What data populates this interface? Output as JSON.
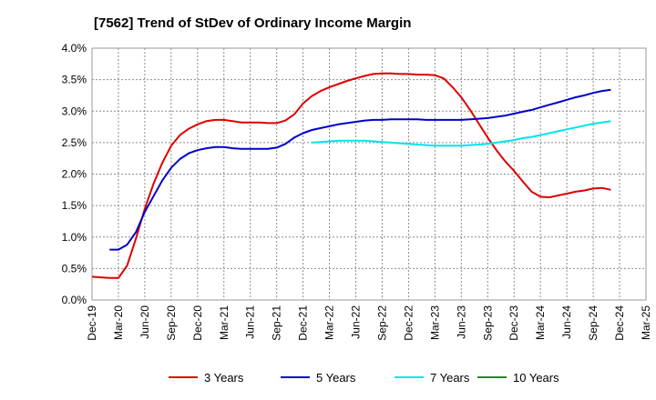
{
  "chart_data": {
    "type": "line",
    "title": "[7562]  Trend of StDev of Ordinary Income Margin",
    "xlabel": "",
    "ylabel": "",
    "ylim": [
      0,
      4.0
    ],
    "y_ticks": [
      "0.0%",
      "0.5%",
      "1.0%",
      "1.5%",
      "2.0%",
      "2.5%",
      "3.0%",
      "3.5%",
      "4.0%"
    ],
    "x_ticks": [
      "Dec-19",
      "Mar-20",
      "Jun-20",
      "Sep-20",
      "Dec-20",
      "Mar-21",
      "Jun-21",
      "Sep-21",
      "Dec-21",
      "Mar-22",
      "Jun-22",
      "Sep-22",
      "Dec-22",
      "Mar-23",
      "Jun-23",
      "Sep-23",
      "Dec-23",
      "Mar-24",
      "Jun-24",
      "Sep-24",
      "Dec-24",
      "Mar-25"
    ],
    "grid": true,
    "legend_position": "bottom",
    "series": [
      {
        "name": "3 Years",
        "color": "#dd0000",
        "values": [
          0.37,
          0.36,
          0.35,
          0.35,
          0.55,
          0.98,
          1.45,
          1.85,
          2.18,
          2.45,
          2.62,
          2.72,
          2.79,
          2.84,
          2.86,
          2.86,
          2.84,
          2.82,
          2.82,
          2.82,
          2.81,
          2.81,
          2.85,
          2.95,
          3.12,
          3.24,
          3.32,
          3.38,
          3.43,
          3.48,
          3.52,
          3.56,
          3.59,
          3.6,
          3.6,
          3.59,
          3.59,
          3.58,
          3.58,
          3.57,
          3.52,
          3.38,
          3.22,
          3.02,
          2.8,
          2.58,
          2.38,
          2.2,
          2.05,
          1.88,
          1.72,
          1.64,
          1.63,
          1.66,
          1.69,
          1.72,
          1.74,
          1.77,
          1.78,
          1.75
        ]
      },
      {
        "name": "5 Years",
        "color": "#0000cc",
        "values": [
          null,
          null,
          0.8,
          0.8,
          0.88,
          1.08,
          1.4,
          1.65,
          1.9,
          2.1,
          2.24,
          2.33,
          2.38,
          2.41,
          2.43,
          2.43,
          2.41,
          2.4,
          2.4,
          2.4,
          2.4,
          2.42,
          2.48,
          2.58,
          2.65,
          2.7,
          2.73,
          2.76,
          2.79,
          2.81,
          2.83,
          2.85,
          2.86,
          2.86,
          2.87,
          2.87,
          2.87,
          2.87,
          2.86,
          2.86,
          2.86,
          2.86,
          2.86,
          2.87,
          2.88,
          2.89,
          2.91,
          2.93,
          2.96,
          2.99,
          3.02,
          3.06,
          3.1,
          3.14,
          3.18,
          3.22,
          3.25,
          3.29,
          3.32,
          3.34
        ]
      },
      {
        "name": "7 Years",
        "color": "#00e5ee",
        "values": [
          null,
          null,
          null,
          null,
          null,
          null,
          null,
          null,
          null,
          null,
          null,
          null,
          null,
          null,
          null,
          null,
          null,
          null,
          null,
          null,
          null,
          null,
          null,
          null,
          null,
          2.5,
          2.51,
          2.52,
          2.53,
          2.53,
          2.53,
          2.53,
          2.52,
          2.51,
          2.5,
          2.49,
          2.48,
          2.47,
          2.46,
          2.45,
          2.45,
          2.45,
          2.45,
          2.46,
          2.47,
          2.48,
          2.5,
          2.52,
          2.54,
          2.57,
          2.59,
          2.62,
          2.65,
          2.68,
          2.71,
          2.74,
          2.77,
          2.8,
          2.82,
          2.84
        ]
      },
      {
        "name": "10 Years",
        "color": "#228b22",
        "values": []
      }
    ]
  }
}
